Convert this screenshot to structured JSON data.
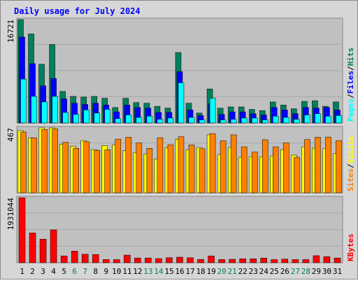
{
  "chart_data": {
    "type": "bar",
    "title": "Daily usage for July 2024",
    "categories": [
      "1",
      "2",
      "3",
      "4",
      "5",
      "6",
      "7",
      "8",
      "9",
      "10",
      "11",
      "12",
      "13",
      "14",
      "15",
      "16",
      "17",
      "18",
      "19",
      "20",
      "21",
      "22",
      "23",
      "24",
      "25",
      "26",
      "27",
      "28",
      "29",
      "30",
      "31"
    ],
    "weekend_days": [
      "6",
      "7",
      "13",
      "14",
      "20",
      "21",
      "27",
      "28"
    ],
    "panels": [
      {
        "id": "hits",
        "ymax_label": "16721",
        "ylim": [
          0,
          16721
        ],
        "right_label": {
          "parts": [
            "Pages",
            "/",
            "Files",
            "/",
            "Hits"
          ]
        },
        "series": [
          {
            "name": "Hits",
            "values": [
              16721,
              14400,
              9500,
              12700,
              5100,
              4300,
              4200,
              4300,
              4000,
              2500,
              4000,
              3300,
              3200,
              2700,
              2400,
              11400,
              3200,
              1600,
              5500,
              2400,
              2600,
              2600,
              2200,
              2000,
              3400,
              2900,
              2300,
              3500,
              3600,
              2700,
              3400
            ]
          },
          {
            "name": "Files",
            "values": [
              13900,
              9600,
              6000,
              7200,
              3900,
              3200,
              3000,
              3200,
              2900,
              1800,
              2900,
              2500,
              2400,
              1700,
              1700,
              8300,
              2100,
              1200,
              3100,
              1400,
              1800,
              1800,
              1500,
              1300,
              2500,
              2100,
              1500,
              2500,
              2400,
              2500,
              2100
            ]
          },
          {
            "name": "Pages",
            "values": [
              7100,
              4300,
              3400,
              4300,
              1700,
              1400,
              2100,
              1600,
              2200,
              700,
              1300,
              900,
              1100,
              600,
              800,
              6500,
              900,
              500,
              4000,
              500,
              600,
              800,
              800,
              500,
              1100,
              900,
              600,
              1300,
              1500,
              1100,
              1200
            ]
          }
        ]
      },
      {
        "id": "visits",
        "ymax_label": "467",
        "ylim": [
          0,
          467
        ],
        "right_label": {
          "parts": [
            "Sites",
            "/",
            "Visits"
          ]
        },
        "series": [
          {
            "name": "Visits",
            "values": [
              447,
              396,
              467,
              467,
              350,
              335,
              375,
              311,
              340,
              346,
              303,
              290,
              280,
              243,
              324,
              385,
              311,
              326,
              417,
              276,
              326,
              256,
              260,
              259,
              266,
              311,
              271,
              331,
              321,
              317,
              283
            ]
          },
          {
            "name": "Sites",
            "values": [
              437,
              396,
              455,
              459,
              363,
              320,
              367,
              305,
              310,
              386,
              400,
              359,
              320,
              396,
              346,
              403,
              344,
              317,
              426,
              374,
              417,
              331,
              293,
              382,
              331,
              359,
              256,
              383,
              400,
              401,
              376
            ]
          }
        ]
      },
      {
        "id": "kbytes",
        "ymax_label": "1931044",
        "ylim": [
          0,
          1931044
        ],
        "right_label": {
          "parts": [
            "KBytes"
          ]
        },
        "series": [
          {
            "name": "KBytes",
            "values": [
              1931044,
              885000,
              701000,
              977000,
              203000,
              345000,
              252000,
              245000,
              96000,
              94000,
              228000,
              141000,
              142000,
              124000,
              150000,
              166000,
              148000,
              98000,
              203000,
              96000,
              102000,
              118000,
              118000,
              140000,
              94000,
              108000,
              94000,
              94000,
              210000,
              181000,
              141000
            ]
          }
        ]
      }
    ],
    "colors": {
      "Hits": "#00805c",
      "Files": "#0000ff",
      "Pages": "#00ffff",
      "Visits": "#ffff00",
      "Sites": "#ff8000",
      "KBytes": "#ff0000",
      "title_text": "#0000ff",
      "weekend_label": "#00805c",
      "day_label": "#000000",
      "slash": "#000000",
      "plot_bg": "#c0c0c0",
      "frame_bg": "#d8d8d8"
    }
  }
}
